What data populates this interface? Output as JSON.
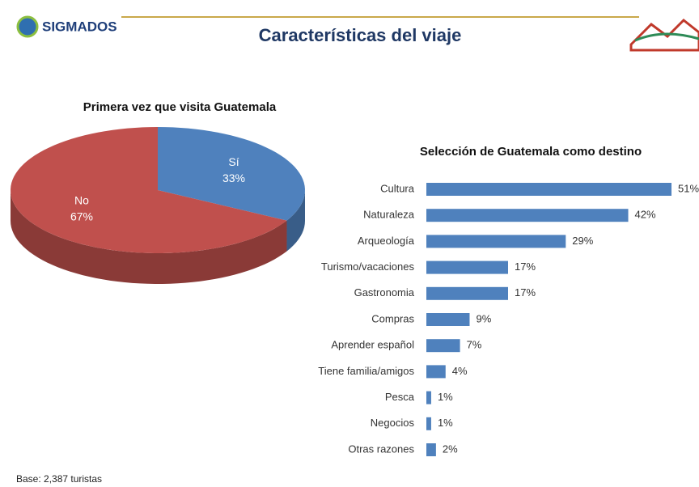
{
  "header": {
    "logo": "SIGMADOS",
    "title": "Características del viaje"
  },
  "chart_data": [
    {
      "type": "pie",
      "title": "Primera vez que visita Guatemala",
      "categories": [
        "Sí",
        "No"
      ],
      "values": [
        33,
        67
      ],
      "value_labels": [
        "33%",
        "67%"
      ],
      "colors": [
        "#4f81bd",
        "#c0504d"
      ]
    },
    {
      "type": "bar",
      "orientation": "horizontal",
      "title": "Selección de Guatemala como destino",
      "categories": [
        "Cultura",
        "Naturaleza",
        "Arqueología",
        "Turismo/vacaciones",
        "Gastronomia",
        "Compras",
        "Aprender español",
        "Tiene familia/amigos",
        "Pesca",
        "Negocios",
        "Otras razones"
      ],
      "values": [
        51,
        42,
        29,
        17,
        17,
        9,
        7,
        4,
        1,
        1,
        2
      ],
      "value_labels": [
        "51%",
        "42%",
        "29%",
        "17%",
        "17%",
        "9%",
        "7%",
        "4%",
        "1%",
        "1%",
        "2%"
      ],
      "color": "#4f81bd"
    }
  ],
  "footer": "Base: 2,387 turistas"
}
